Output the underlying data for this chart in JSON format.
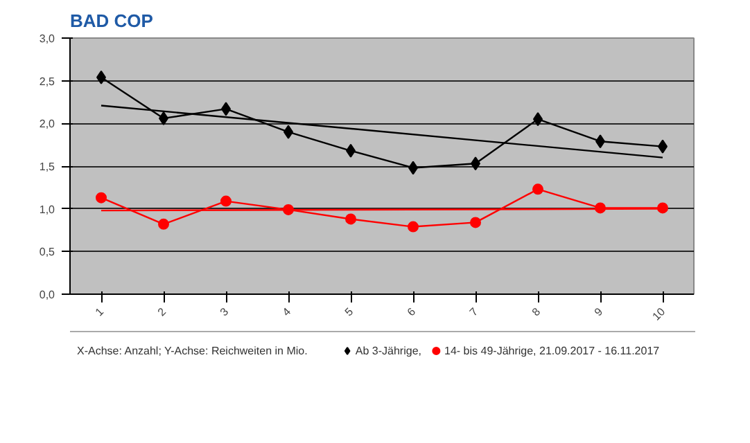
{
  "chart_data": {
    "type": "line",
    "title": "BAD COP",
    "categories": [
      "1",
      "2",
      "3",
      "4",
      "5",
      "6",
      "7",
      "8",
      "9",
      "10"
    ],
    "series": [
      {
        "name": "Ab 3-Jährige,",
        "color": "#000000",
        "marker": "diamond",
        "values": [
          2.54,
          2.06,
          2.17,
          1.9,
          1.68,
          1.48,
          1.53,
          2.05,
          1.79,
          1.73
        ]
      },
      {
        "name": "14- bis 49-Jährige, 21.09.2017 - 16.11.2017",
        "color": "#ff0000",
        "marker": "circle",
        "values": [
          1.13,
          0.82,
          1.09,
          0.99,
          0.88,
          0.79,
          0.84,
          1.23,
          1.01,
          1.01
        ]
      },
      {
        "color": "#000000",
        "marker": "none",
        "x": [
          "1",
          "10"
        ],
        "values": [
          2.21,
          1.6
        ]
      },
      {
        "color": "#ff0000",
        "marker": "none",
        "x": [
          "1",
          "10"
        ],
        "values": [
          0.98,
          1.0
        ]
      }
    ],
    "ylim": [
      0,
      3
    ],
    "yticks": [
      {
        "value": 0,
        "label": "0,0"
      },
      {
        "value": 0.5,
        "label": "0,5"
      },
      {
        "value": 1,
        "label": "1,0"
      },
      {
        "value": 1.5,
        "label": "1,5"
      },
      {
        "value": 2,
        "label": "2,0"
      },
      {
        "value": 2.5,
        "label": "2,5"
      },
      {
        "value": 3,
        "label": "3,0"
      }
    ],
    "grid": "y",
    "legend": "bottom",
    "annotations": [
      "X-Achse: Anzahl; Y-Achse: Reichweiten in Mio."
    ]
  }
}
